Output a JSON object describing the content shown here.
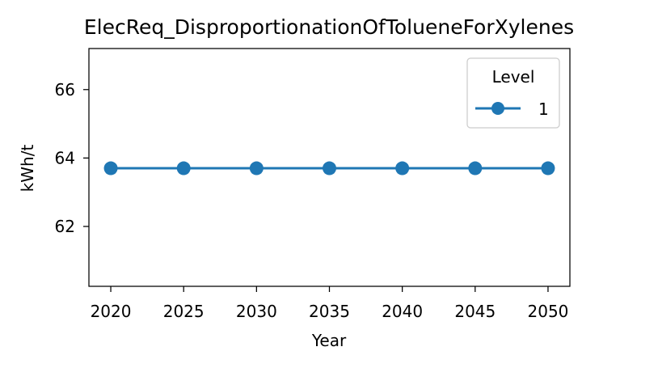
{
  "chart_data": {
    "type": "line",
    "title": "ElecReq_DisproportionationOfTolueneForXylenes",
    "xlabel": "Year",
    "ylabel": "kWh/t",
    "x": [
      2020,
      2025,
      2030,
      2035,
      2040,
      2045,
      2050
    ],
    "series": [
      {
        "name": "1",
        "values": [
          63.7,
          63.7,
          63.7,
          63.7,
          63.7,
          63.7,
          63.7
        ],
        "color": "#1f77b4",
        "marker": "circle"
      }
    ],
    "xticks": [
      "2020",
      "2025",
      "2030",
      "2035",
      "2040",
      "2045",
      "2050"
    ],
    "yticks": [
      "62",
      "64",
      "66"
    ],
    "xlim": [
      2018.5,
      2051.5
    ],
    "ylim": [
      60.25,
      67.2
    ],
    "grid": false,
    "legend": {
      "title": "Level",
      "position": "top-right"
    }
  }
}
